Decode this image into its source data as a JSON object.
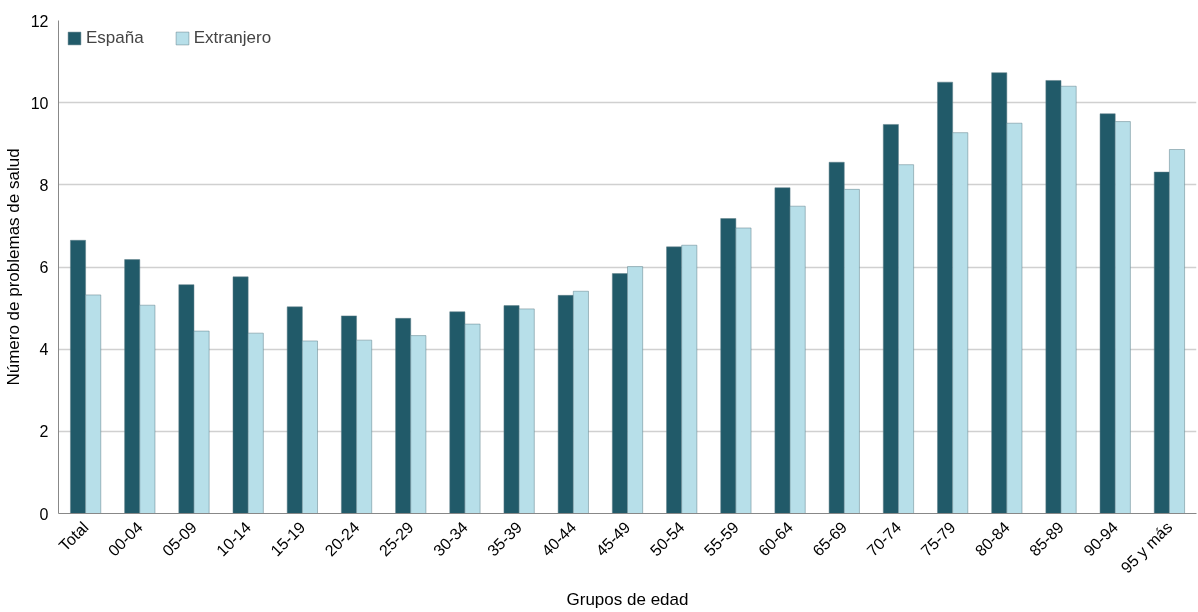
{
  "chart_data": {
    "type": "bar",
    "xlabel": "Grupos de edad",
    "ylabel": "Número de problemas de salud",
    "categories": [
      "Total",
      "00-04",
      "05-09",
      "10-14",
      "15-19",
      "20-24",
      "25-29",
      "30-34",
      "35-39",
      "40-44",
      "45-49",
      "50-54",
      "55-59",
      "60-64",
      "65-69",
      "70-74",
      "75-79",
      "80-84",
      "85-89",
      "90-94",
      "95 y más"
    ],
    "series": [
      {
        "name": "España",
        "color": "#215a69",
        "values": [
          6.65,
          6.18,
          5.57,
          5.76,
          5.03,
          4.81,
          4.75,
          4.91,
          5.06,
          5.31,
          5.84,
          6.49,
          7.18,
          7.93,
          8.55,
          9.47,
          10.5,
          10.73,
          10.54,
          9.73,
          8.31
        ]
      },
      {
        "name": "Extranjero",
        "color": "#b7dfe9",
        "values": [
          5.32,
          5.07,
          4.44,
          4.39,
          4.2,
          4.22,
          4.33,
          4.61,
          4.98,
          5.41,
          6.01,
          6.53,
          6.95,
          7.48,
          7.89,
          8.49,
          9.27,
          9.5,
          10.4,
          9.54,
          8.86
        ]
      }
    ],
    "ylim": [
      0,
      12
    ],
    "yticks": [
      0,
      2,
      4,
      6,
      8,
      10,
      12
    ],
    "grid": "y",
    "legend": "top left"
  }
}
